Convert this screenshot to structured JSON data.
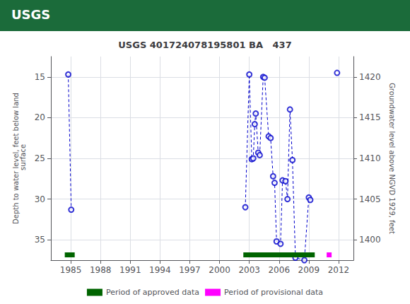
{
  "chart_data": {
    "type": "scatter",
    "title": "USGS 401724078195801 BA   437",
    "annotations": [
      {
        "text": "USGS",
        "color": "#1b6b3a"
      }
    ],
    "ylabel": "Depth to water level, feet below land\n surface",
    "y2label": "Groundwater level above NGVD 1929, feet",
    "xlim": [
      1983.0,
      2013.5
    ],
    "xticks": [
      1985,
      1988,
      1991,
      1994,
      1997,
      2000,
      2003,
      2006,
      2009,
      2012
    ],
    "ylim": [
      37.5,
      12.5
    ],
    "yticks": [
      15,
      20,
      25,
      30,
      35
    ],
    "y2lim": [
      1397.5,
      1422.5
    ],
    "y2ticks": [
      1420,
      1415,
      1410,
      1405,
      1400
    ],
    "grid": true,
    "legend": "bottom",
    "series": [
      {
        "type": "scatter",
        "color": "#0000cc",
        "marker": "open_circle",
        "line_style": "dashed",
        "x": [
          1984.75,
          1985.05,
          2002.6,
          2003.0,
          2003.25,
          2003.4,
          2003.55,
          2003.65,
          2003.9,
          2004.05,
          2004.4,
          2004.55,
          2004.95,
          2005.15,
          2005.4,
          2005.55,
          2005.75,
          2006.15,
          2006.35,
          2006.65,
          2006.85,
          2007.1,
          2007.35,
          2007.65,
          2008.55,
          2009.0,
          2009.15,
          2011.85
        ],
        "values": [
          14.7,
          31.3,
          31.0,
          14.7,
          25.1,
          25.0,
          20.8,
          19.5,
          24.3,
          24.6,
          15.0,
          15.1,
          22.3,
          22.5,
          27.2,
          28.0,
          35.2,
          35.5,
          27.7,
          27.8,
          30.0,
          19.0,
          25.2,
          37.2,
          37.5,
          29.8,
          30.1,
          14.5
        ],
        "segments": [
          [
            0,
            1
          ],
          [
            2,
            3
          ],
          [
            3,
            4
          ],
          [
            4,
            5
          ],
          [
            5,
            6
          ],
          [
            6,
            7
          ],
          [
            7,
            8
          ],
          [
            8,
            9
          ],
          [
            9,
            10
          ],
          [
            10,
            11
          ],
          [
            11,
            12
          ],
          [
            12,
            13
          ],
          [
            13,
            14
          ],
          [
            14,
            15
          ],
          [
            15,
            16
          ],
          [
            16,
            17
          ],
          [
            17,
            18
          ],
          [
            18,
            19
          ],
          [
            19,
            20
          ],
          [
            20,
            21
          ],
          [
            21,
            22
          ],
          [
            22,
            23
          ],
          [
            23,
            24
          ],
          [
            24,
            25
          ],
          [
            25,
            26
          ]
        ]
      },
      {
        "type": "period",
        "name": "Period of approved data",
        "color": "#006400",
        "periods": [
          [
            1984.4,
            1985.4
          ],
          [
            2002.4,
            2009.6
          ]
        ]
      },
      {
        "type": "period",
        "name": "Period of provisional data",
        "color": "#ff00ff",
        "periods": [
          [
            2010.8,
            2011.3
          ]
        ]
      }
    ]
  }
}
